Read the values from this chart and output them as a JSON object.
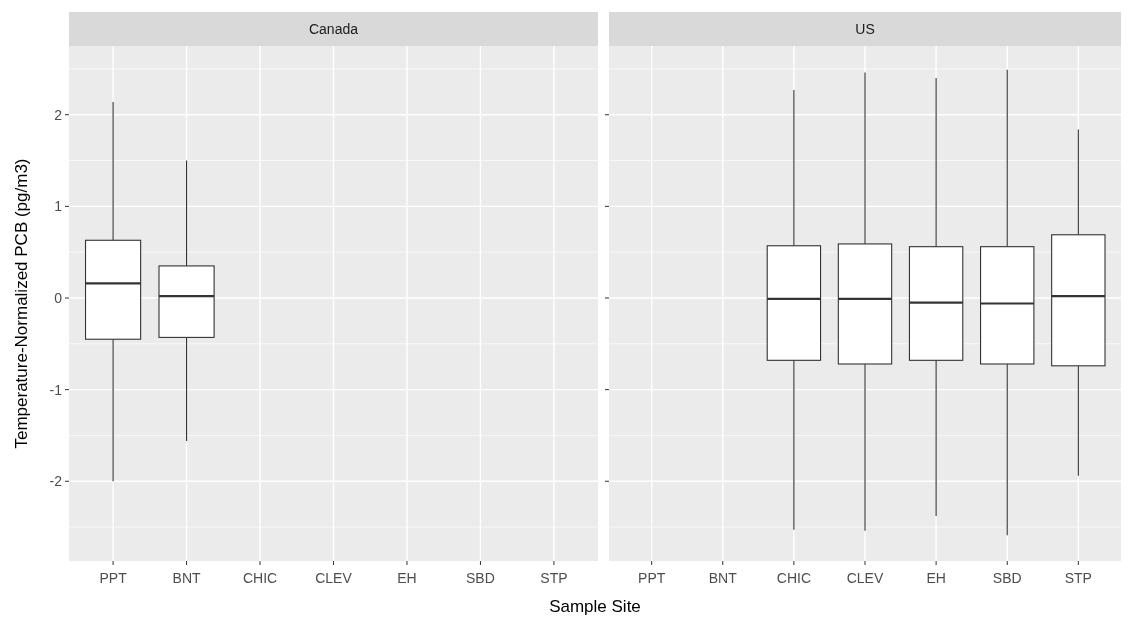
{
  "chart_data": [
    {
      "type": "box",
      "title": "Canada",
      "ylabel": "Temperature-Normalized PCB (pg/m3)",
      "xlabel": "Sample Site",
      "categories": [
        "PPT",
        "BNT",
        "CHIC",
        "CLEV",
        "EH",
        "SBD",
        "STP"
      ],
      "boxes": [
        {
          "low": -2.0,
          "q1": -0.45,
          "median": 0.16,
          "q3": 0.63,
          "high": 2.14
        },
        {
          "low": -1.56,
          "q1": -0.43,
          "median": 0.02,
          "q3": 0.35,
          "high": 1.5
        },
        null,
        null,
        null,
        null,
        null
      ],
      "ylim": [
        -2.87,
        2.75
      ],
      "yticks": [
        {
          "value": -2.5,
          "label": null
        },
        -2,
        {
          "value": -1.5,
          "label": null
        },
        -1,
        {
          "value": -0.5,
          "label": null
        },
        0,
        {
          "value": 0.5,
          "label": null
        },
        1,
        {
          "value": 1.5,
          "label": null
        },
        2,
        {
          "value": 2.5,
          "label": null
        }
      ],
      "grid": true
    },
    {
      "type": "box",
      "title": "US",
      "categories": [
        "PPT",
        "BNT",
        "CHIC",
        "CLEV",
        "EH",
        "SBD",
        "STP"
      ],
      "boxes": [
        null,
        null,
        {
          "low": -2.53,
          "q1": -0.68,
          "median": -0.01,
          "q3": 0.57,
          "high": 2.27
        },
        {
          "low": -2.54,
          "q1": -0.72,
          "median": -0.01,
          "q3": 0.59,
          "high": 2.46
        },
        {
          "low": -2.38,
          "q1": -0.68,
          "median": -0.05,
          "q3": 0.56,
          "high": 2.4
        },
        {
          "low": -2.59,
          "q1": -0.72,
          "median": -0.06,
          "q3": 0.56,
          "high": 2.49
        },
        {
          "low": -1.94,
          "q1": -0.74,
          "median": 0.02,
          "q3": 0.69,
          "high": 1.84
        }
      ],
      "ylim": [
        -2.87,
        2.75
      ],
      "yticks": [
        {
          "value": -2.5,
          "label": null
        },
        -2,
        {
          "value": -1.5,
          "label": null
        },
        -1,
        {
          "value": -0.5,
          "label": null
        },
        0,
        {
          "value": 0.5,
          "label": null
        },
        1,
        {
          "value": 1.5,
          "label": null
        },
        2,
        {
          "value": 2.5,
          "label": null
        }
      ],
      "grid": true,
      "tick_labels": "x"
    }
  ]
}
